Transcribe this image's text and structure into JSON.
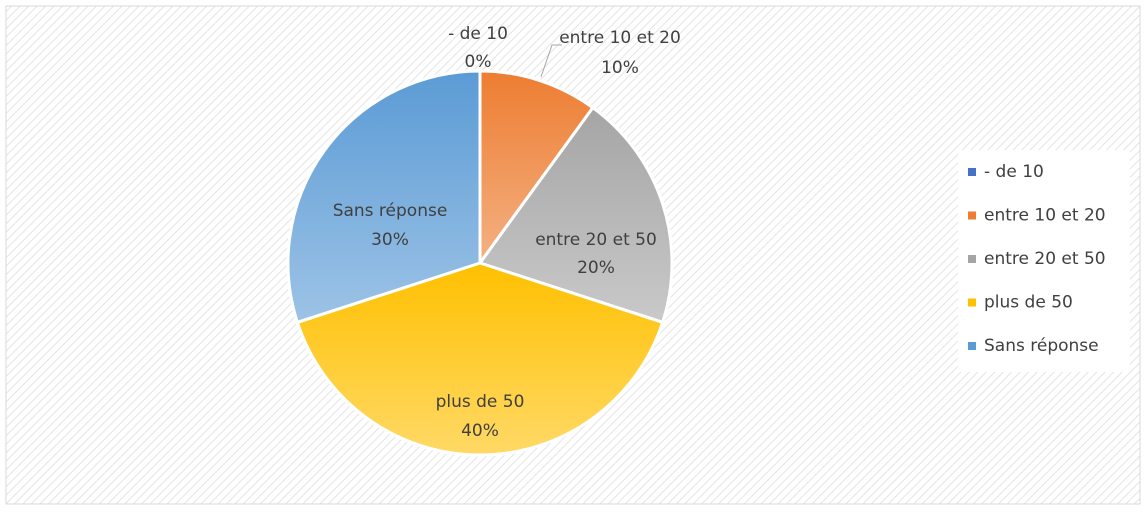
{
  "chart_data": {
    "type": "pie",
    "categories": [
      "- de 10",
      "entre 10 et 20",
      "entre 20 et 50",
      "plus de 50",
      "Sans réponse"
    ],
    "values": [
      0,
      10,
      20,
      40,
      30
    ],
    "value_labels": [
      "0%",
      "10%",
      "20%",
      "40%",
      "30%"
    ],
    "colors": [
      "#4472c4",
      "#ed7d31",
      "#a5a5a5",
      "#ffc000",
      "#5b9bd5"
    ],
    "legend": "right"
  }
}
